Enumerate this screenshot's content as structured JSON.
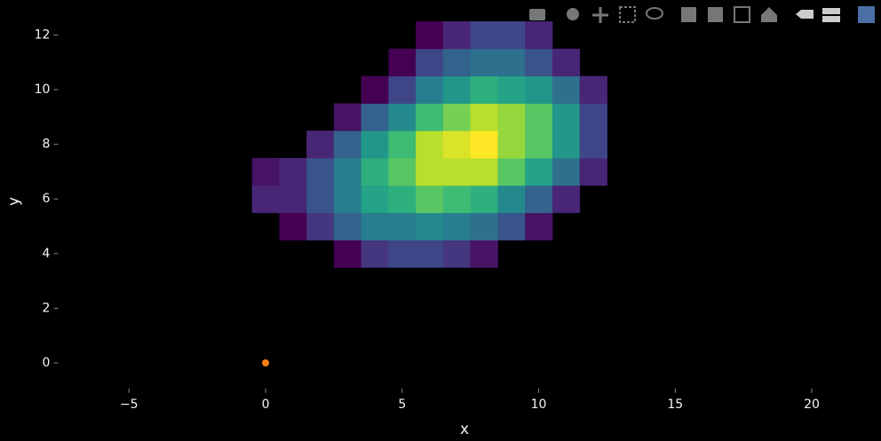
{
  "chart_data": {
    "type": "heatmap",
    "colorscale": "Viridis",
    "x": [
      0,
      1,
      2,
      3,
      4,
      5,
      6,
      7,
      8,
      9,
      10,
      11,
      12
    ],
    "y": [
      4,
      5,
      6,
      7,
      8,
      9,
      10,
      11,
      12
    ],
    "z": [
      [
        null,
        null,
        null,
        1,
        4,
        5,
        5,
        4,
        2,
        null,
        null,
        null,
        null
      ],
      [
        null,
        1,
        4,
        7,
        9,
        9,
        10,
        9,
        8,
        6,
        2,
        null,
        null
      ],
      [
        3,
        3,
        6,
        9,
        12,
        13,
        15,
        14,
        13,
        10,
        7,
        3,
        null
      ],
      [
        2,
        3,
        6,
        9,
        13,
        15,
        18,
        18,
        18,
        15,
        12,
        8,
        3
      ],
      [
        null,
        null,
        3,
        7,
        11,
        14,
        18,
        19,
        20,
        17,
        15,
        11,
        5
      ],
      [
        null,
        null,
        null,
        2,
        7,
        10,
        14,
        16,
        18,
        17,
        15,
        11,
        5
      ],
      [
        null,
        null,
        null,
        null,
        1,
        5,
        9,
        11,
        13,
        12,
        11,
        8,
        3
      ],
      [
        null,
        null,
        null,
        null,
        null,
        1,
        5,
        7,
        8,
        8,
        6,
        3,
        null
      ],
      [
        null,
        null,
        null,
        null,
        null,
        null,
        1,
        3,
        5,
        5,
        3,
        null,
        null
      ]
    ],
    "overlay": {
      "type": "scatter",
      "x": [
        0
      ],
      "y": [
        0
      ],
      "color": "#ff7f0e"
    },
    "xlabel": "x",
    "ylabel": "y",
    "xlim": [
      -7.5,
      22.5
    ],
    "ylim": [
      -1,
      12.8
    ],
    "xticks": [
      {
        "value": -5,
        "label": "−5"
      },
      0,
      5,
      10,
      15,
      20
    ],
    "yticks": [
      0,
      2,
      4,
      6,
      8,
      10,
      12
    ]
  }
}
